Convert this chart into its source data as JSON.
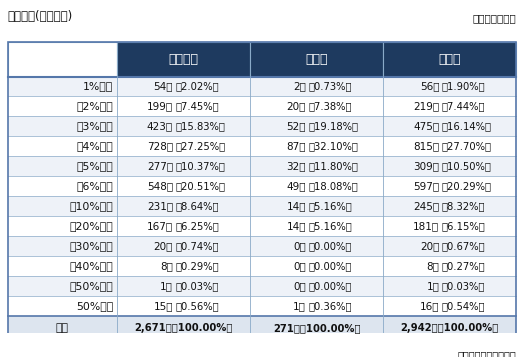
{
  "title_left": "賃上げ率(前年度比)",
  "title_right": "（）内は構成比",
  "footer": "東京商エリサーチ調べ",
  "col_headers": [
    "中小企業",
    "大企業",
    "全企業"
  ],
  "row_labels": [
    "1%未満",
    "〜2%未満",
    "〜3%未満",
    "〜4%未満",
    "〜5%未満",
    "〜6%未満",
    "〜10%未満",
    "〜20%未満",
    "〜30%未満",
    "〜40%未満",
    "〜50%未満",
    "50%以上",
    "合計"
  ],
  "data": [
    [
      "54社",
      "（2.02%）",
      "2社",
      "（0.73%）",
      "56社",
      "（1.90%）"
    ],
    [
      "199社",
      "（7.45%）",
      "20社",
      "（7.38%）",
      "219社",
      "（7.44%）"
    ],
    [
      "423社",
      "（15.83%）",
      "52社",
      "（19.18%）",
      "475社",
      "（16.14%）"
    ],
    [
      "728社",
      "（27.25%）",
      "87社",
      "（32.10%）",
      "815社",
      "（27.70%）"
    ],
    [
      "277社",
      "（10.37%）",
      "32社",
      "（11.80%）",
      "309社",
      "（10.50%）"
    ],
    [
      "548社",
      "（20.51%）",
      "49社",
      "（18.08%）",
      "597社",
      "（20.29%）"
    ],
    [
      "231社",
      "（8.64%）",
      "14社",
      "（5.16%）",
      "245社",
      "（8.32%）"
    ],
    [
      "167社",
      "（6.25%）",
      "14社",
      "（5.16%）",
      "181社",
      "（6.15%）"
    ],
    [
      "20社",
      "（0.74%）",
      "0社",
      "（0.00%）",
      "20社",
      "（0.67%）"
    ],
    [
      "8社",
      "（0.29%）",
      "0社",
      "（0.00%）",
      "8社",
      "（0.27%）"
    ],
    [
      "1社",
      "（0.03%）",
      "0社",
      "（0.00%）",
      "1社",
      "（0.03%）"
    ],
    [
      "15社",
      "（0.56%）",
      "1社",
      "（0.36%）",
      "16社",
      "（0.54%）"
    ],
    [
      "2,671社",
      "（100.00%）",
      "271社",
      "（100.00%）",
      "2,942社",
      "（100.00%）"
    ]
  ],
  "header_bg": "#1e3a5f",
  "header_fg": "#ffffff",
  "row_bg_even": "#eef2f8",
  "row_bg_odd": "#ffffff",
  "total_bg": "#dde5ef",
  "border_color": "#8aaac8",
  "outer_border_color": "#5577aa",
  "fig_w": 5.19,
  "fig_h": 3.57,
  "dpi": 100
}
